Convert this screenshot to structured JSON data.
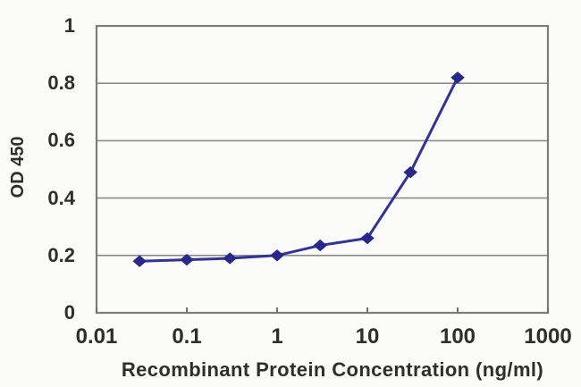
{
  "chart_data": {
    "type": "line",
    "title": "",
    "xlabel": "Recombinant Protein Concentration (ng/ml)",
    "ylabel": "OD 450",
    "x_scale": "log",
    "y_scale": "linear",
    "xlim": [
      0.01,
      1000
    ],
    "ylim": [
      0,
      1
    ],
    "x_ticks": [
      "0.01",
      "0.1",
      "1",
      "10",
      "100",
      "1000"
    ],
    "y_ticks": [
      "0",
      "0.2",
      "0.4",
      "0.6",
      "0.8",
      "1"
    ],
    "grid": "horizontal",
    "gridline_values": [
      0.2,
      0.4,
      0.6,
      0.8
    ],
    "legend": "none",
    "x": [
      0.03,
      0.1,
      0.3,
      1,
      3,
      10,
      30,
      100
    ],
    "series": [
      {
        "name": "OD 450",
        "values": [
          0.18,
          0.185,
          0.19,
          0.2,
          0.235,
          0.26,
          0.49,
          0.82
        ],
        "marker": "diamond"
      }
    ],
    "colors": {
      "line": "#32329b",
      "marker": "#28288a",
      "grid": "#8c8c8c",
      "frame": "#7d7d7d",
      "tick": "#707070",
      "text": "#2e2e2e",
      "background": "#fbfbf9"
    }
  }
}
